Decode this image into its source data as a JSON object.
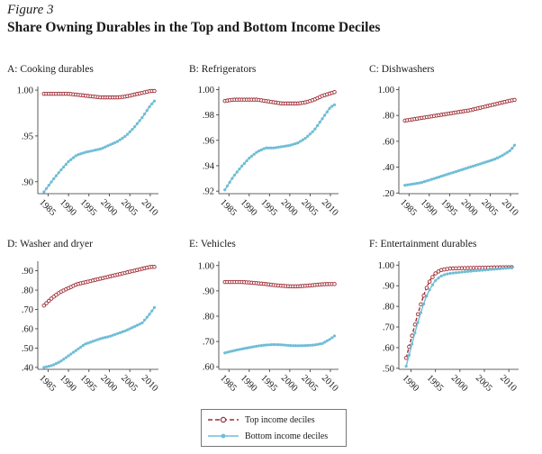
{
  "figure_label": "Figure 3",
  "figure_title": "Share Owning Durables in the Top and Bottom Income Deciles",
  "legend": {
    "top_label": "Top income deciles",
    "bottom_label": "Bottom income deciles"
  },
  "colors": {
    "top": "#9e2b33",
    "bottom": "#6fbdd6"
  },
  "chart_data": [
    {
      "type": "line",
      "title": "A: Cooking durables",
      "xlim": [
        1982.5,
        2012
      ],
      "xticks": [
        "1985",
        "1990",
        "1995",
        "2000",
        "2005",
        "2010"
      ],
      "ylim": [
        0.887,
        1.002
      ],
      "yticks": [
        {
          "v": 0.9,
          "label": ".90"
        },
        {
          "v": 0.95,
          "label": ".95"
        },
        {
          "v": 1.0,
          "label": "1.00"
        }
      ],
      "series": [
        {
          "name": "Top income deciles",
          "x": [
            1984,
            1986,
            1988,
            1990,
            1992,
            1994,
            1996,
            1998,
            2000,
            2002,
            2004,
            2006,
            2008,
            2010,
            2011
          ],
          "values": [
            0.996,
            0.996,
            0.996,
            0.996,
            0.995,
            0.994,
            0.993,
            0.992,
            0.992,
            0.992,
            0.993,
            0.995,
            0.997,
            0.999,
            0.999
          ]
        },
        {
          "name": "Bottom income deciles",
          "x": [
            1984,
            1986,
            1988,
            1990,
            1992,
            1994,
            1996,
            1998,
            2000,
            2002,
            2004,
            2006,
            2008,
            2010,
            2011
          ],
          "values": [
            0.889,
            0.901,
            0.912,
            0.922,
            0.929,
            0.932,
            0.934,
            0.936,
            0.94,
            0.944,
            0.95,
            0.959,
            0.97,
            0.983,
            0.988
          ]
        }
      ]
    },
    {
      "type": "line",
      "title": "B: Refrigerators",
      "xlim": [
        1982.5,
        2012
      ],
      "xticks": [
        "1985",
        "1990",
        "1995",
        "2000",
        "2005",
        "2010"
      ],
      "ylim": [
        0.918,
        1.001
      ],
      "yticks": [
        {
          "v": 0.92,
          "label": ".92"
        },
        {
          "v": 0.94,
          "label": ".94"
        },
        {
          "v": 0.96,
          "label": ".96"
        },
        {
          "v": 0.98,
          "label": ".98"
        },
        {
          "v": 1.0,
          "label": "1.00"
        }
      ],
      "series": [
        {
          "name": "Top income deciles",
          "x": [
            1984,
            1986,
            1988,
            1990,
            1992,
            1994,
            1996,
            1998,
            2000,
            2002,
            2004,
            2006,
            2008,
            2010,
            2011
          ],
          "values": [
            0.991,
            0.992,
            0.992,
            0.992,
            0.992,
            0.991,
            0.99,
            0.989,
            0.989,
            0.989,
            0.99,
            0.992,
            0.995,
            0.997,
            0.998
          ]
        },
        {
          "name": "Bottom income deciles",
          "x": [
            1984,
            1986,
            1988,
            1990,
            1992,
            1994,
            1996,
            1998,
            2000,
            2002,
            2004,
            2006,
            2008,
            2010,
            2011
          ],
          "values": [
            0.921,
            0.931,
            0.939,
            0.946,
            0.951,
            0.954,
            0.954,
            0.955,
            0.956,
            0.958,
            0.962,
            0.968,
            0.977,
            0.986,
            0.988
          ]
        }
      ]
    },
    {
      "type": "line",
      "title": "C: Dishwashers",
      "xlim": [
        1982.5,
        2012
      ],
      "xticks": [
        "1985",
        "1990",
        "1995",
        "2000",
        "2005",
        "2010"
      ],
      "ylim": [
        0.195,
        1.01
      ],
      "yticks": [
        {
          "v": 0.2,
          "label": ".20"
        },
        {
          "v": 0.4,
          "label": ".40"
        },
        {
          "v": 0.6,
          "label": ".60"
        },
        {
          "v": 0.8,
          "label": ".80"
        },
        {
          "v": 1.0,
          "label": "1.00"
        }
      ],
      "series": [
        {
          "name": "Top income deciles",
          "x": [
            1984,
            1986,
            1988,
            1990,
            1992,
            1994,
            1996,
            1998,
            2000,
            2002,
            2004,
            2006,
            2008,
            2010,
            2011
          ],
          "values": [
            0.76,
            0.77,
            0.78,
            0.79,
            0.8,
            0.81,
            0.82,
            0.83,
            0.84,
            0.855,
            0.87,
            0.885,
            0.9,
            0.915,
            0.92
          ]
        },
        {
          "name": "Bottom income deciles",
          "x": [
            1984,
            1986,
            1988,
            1990,
            1992,
            1994,
            1996,
            1998,
            2000,
            2002,
            2004,
            2006,
            2008,
            2010,
            2011
          ],
          "values": [
            0.26,
            0.27,
            0.28,
            0.3,
            0.32,
            0.34,
            0.36,
            0.38,
            0.4,
            0.42,
            0.44,
            0.46,
            0.49,
            0.53,
            0.57
          ]
        }
      ]
    },
    {
      "type": "line",
      "title": "D: Washer and dryer",
      "xlim": [
        1982.5,
        2012
      ],
      "xticks": [
        "1985",
        "1990",
        "1995",
        "2000",
        "2005",
        "2010"
      ],
      "ylim": [
        0.39,
        0.94
      ],
      "yticks": [
        {
          "v": 0.4,
          "label": ".40"
        },
        {
          "v": 0.5,
          "label": ".50"
        },
        {
          "v": 0.6,
          "label": ".60"
        },
        {
          "v": 0.7,
          "label": ".70"
        },
        {
          "v": 0.8,
          "label": ".80"
        },
        {
          "v": 0.9,
          "label": ".90"
        }
      ],
      "series": [
        {
          "name": "Top income deciles",
          "x": [
            1984,
            1986,
            1988,
            1990,
            1992,
            1994,
            1996,
            1998,
            2000,
            2002,
            2004,
            2006,
            2008,
            2010,
            2011
          ],
          "values": [
            0.72,
            0.76,
            0.79,
            0.81,
            0.83,
            0.84,
            0.85,
            0.86,
            0.87,
            0.88,
            0.89,
            0.9,
            0.91,
            0.92,
            0.92
          ]
        },
        {
          "name": "Bottom income deciles",
          "x": [
            1984,
            1986,
            1988,
            1990,
            1992,
            1994,
            1996,
            1998,
            2000,
            2002,
            2004,
            2006,
            2008,
            2010,
            2011
          ],
          "values": [
            0.4,
            0.41,
            0.43,
            0.46,
            0.49,
            0.52,
            0.535,
            0.55,
            0.56,
            0.575,
            0.59,
            0.61,
            0.63,
            0.68,
            0.71
          ]
        }
      ]
    },
    {
      "type": "line",
      "title": "E: Vehicles",
      "xlim": [
        1982.5,
        2012
      ],
      "xticks": [
        "1985",
        "1990",
        "1995",
        "2000",
        "2005",
        "2010"
      ],
      "ylim": [
        0.59,
        1.01
      ],
      "yticks": [
        {
          "v": 0.6,
          "label": ".60"
        },
        {
          "v": 0.7,
          "label": ".70"
        },
        {
          "v": 0.8,
          "label": ".80"
        },
        {
          "v": 0.9,
          "label": ".90"
        },
        {
          "v": 1.0,
          "label": "1.00"
        }
      ],
      "series": [
        {
          "name": "Top income deciles",
          "x": [
            1984,
            1986,
            1988,
            1990,
            1992,
            1994,
            1996,
            1998,
            2000,
            2002,
            2004,
            2006,
            2008,
            2010,
            2011
          ],
          "values": [
            0.935,
            0.935,
            0.935,
            0.933,
            0.93,
            0.927,
            0.923,
            0.92,
            0.918,
            0.918,
            0.92,
            0.923,
            0.926,
            0.927,
            0.927
          ]
        },
        {
          "name": "Bottom income deciles",
          "x": [
            1984,
            1986,
            1988,
            1990,
            1992,
            1994,
            1996,
            1998,
            2000,
            2002,
            2004,
            2006,
            2008,
            2010,
            2011
          ],
          "values": [
            0.655,
            0.663,
            0.67,
            0.676,
            0.682,
            0.686,
            0.688,
            0.687,
            0.684,
            0.683,
            0.684,
            0.686,
            0.692,
            0.71,
            0.722
          ]
        }
      ]
    },
    {
      "type": "line",
      "title": "F: Entertainment durables",
      "xlim": [
        1987.5,
        2012
      ],
      "xticks": [
        "1990",
        "1995",
        "2000",
        "2005",
        "2010"
      ],
      "ylim": [
        0.495,
        1.01
      ],
      "yticks": [
        {
          "v": 0.5,
          "label": ".50"
        },
        {
          "v": 0.6,
          "label": ".60"
        },
        {
          "v": 0.7,
          "label": ".70"
        },
        {
          "v": 0.8,
          "label": ".80"
        },
        {
          "v": 0.9,
          "label": ".90"
        },
        {
          "v": 1.0,
          "label": "1.00"
        }
      ],
      "series": [
        {
          "name": "Top income deciles",
          "x": [
            1989,
            1990,
            1991,
            1992,
            1993,
            1994,
            1995,
            1996,
            1997,
            1998,
            2000,
            2002,
            2004,
            2006,
            2008,
            2010,
            2011
          ],
          "values": [
            0.55,
            0.64,
            0.73,
            0.81,
            0.88,
            0.93,
            0.96,
            0.975,
            0.98,
            0.983,
            0.985,
            0.986,
            0.987,
            0.988,
            0.989,
            0.99,
            0.99
          ]
        },
        {
          "name": "Bottom income deciles",
          "x": [
            1989,
            1990,
            1991,
            1992,
            1993,
            1994,
            1995,
            1996,
            1997,
            1998,
            2000,
            2002,
            2004,
            2006,
            2008,
            2010,
            2011
          ],
          "values": [
            0.51,
            0.6,
            0.69,
            0.77,
            0.84,
            0.89,
            0.925,
            0.945,
            0.955,
            0.96,
            0.965,
            0.97,
            0.974,
            0.978,
            0.982,
            0.986,
            0.988
          ]
        }
      ]
    }
  ]
}
